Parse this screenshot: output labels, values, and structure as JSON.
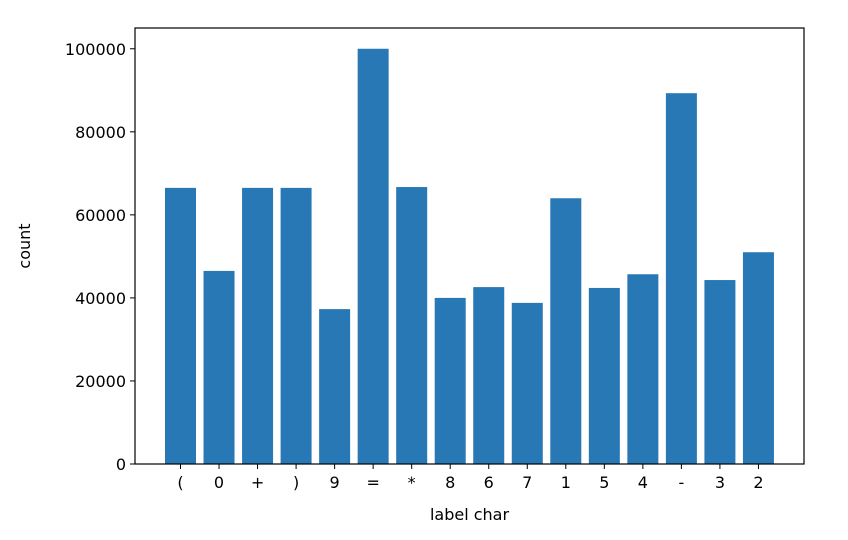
{
  "chart_data": {
    "type": "bar",
    "xlabel": "label char",
    "ylabel": "count",
    "categories": [
      "(",
      "0",
      "+",
      ")",
      "9",
      "=",
      "*",
      "8",
      "6",
      "7",
      "1",
      "5",
      "4",
      "-",
      "3",
      "2"
    ],
    "values": [
      66500,
      46500,
      66500,
      66500,
      37300,
      100000,
      66700,
      40000,
      42600,
      38800,
      64000,
      42400,
      45700,
      89300,
      44300,
      51000
    ],
    "yticks": [
      "0",
      "20000",
      "40000",
      "60000",
      "80000",
      "100000"
    ],
    "ytick_values": [
      0,
      20000,
      40000,
      60000,
      80000,
      100000
    ],
    "ylim": [
      0,
      105000
    ],
    "grid": false,
    "colors": {
      "bar": "#2878b5",
      "axis": "#000000"
    }
  }
}
